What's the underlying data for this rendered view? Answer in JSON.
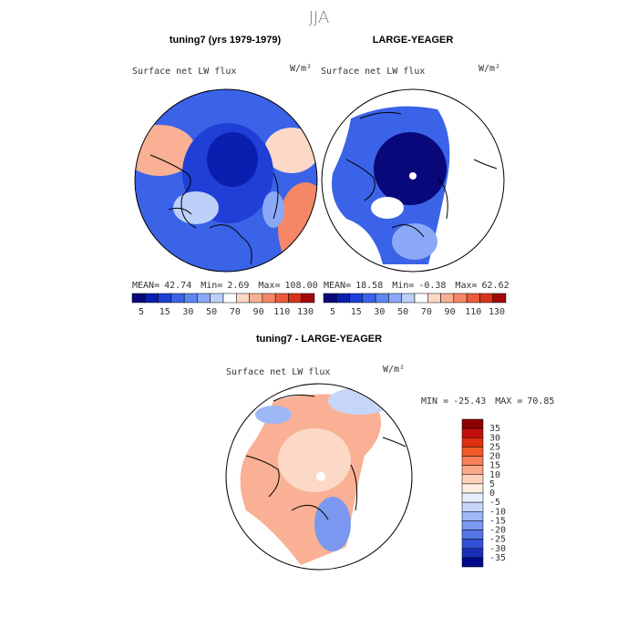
{
  "title": "JJA",
  "panels": [
    {
      "heading": "tuning7 (yrs 1979-1979)",
      "field": "Surface net LW flux",
      "units": "W/m²",
      "stats": [
        {
          "label": "MEAN=",
          "value": "42.74"
        },
        {
          "label": "Min=",
          "value": "2.69"
        },
        {
          "label": "Max=",
          "value": "108.00"
        }
      ]
    },
    {
      "heading": "LARGE-YEAGER",
      "field": "Surface net LW flux",
      "units": "W/m²",
      "stats": [
        {
          "label": "MEAN=",
          "value": "18.58"
        },
        {
          "label": "Min=",
          "value": "-0.38"
        },
        {
          "label": "Max=",
          "value": "62.62"
        }
      ]
    },
    {
      "heading": "tuning7 - LARGE-YEAGER",
      "field": "Surface net LW flux",
      "units": "W/m²",
      "stats": [
        {
          "label": "MIN =",
          "value": "-25.43"
        },
        {
          "label": "MAX =",
          "value": "70.85"
        }
      ]
    }
  ],
  "colorbar_top": {
    "labels": [
      "5",
      "15",
      "30",
      "50",
      "70",
      "90",
      "110",
      "130"
    ],
    "colors": [
      "#08087a",
      "#0a1fb0",
      "#1f3fd6",
      "#3a63e8",
      "#5f87f0",
      "#8aa8f5",
      "#bcd0fa",
      "#ffffff",
      "#fcd8c6",
      "#f9b094",
      "#f58766",
      "#ec5a3c",
      "#d83218",
      "#a00808"
    ]
  },
  "colorbar_diff": {
    "labels": [
      "35",
      "30",
      "25",
      "20",
      "15",
      "10",
      "5",
      "0",
      "-5",
      "-10",
      "-15",
      "-20",
      "-25",
      "-30",
      "-35"
    ],
    "colors": [
      "#8b0000",
      "#c01010",
      "#e03010",
      "#f05a28",
      "#f5805a",
      "#f9a888",
      "#fcd2be",
      "#fdeee4",
      "#e6eefc",
      "#c6d6fa",
      "#9eb8f5",
      "#7a98ef",
      "#5676e6",
      "#3350d8",
      "#1a2fb8",
      "#000a8c"
    ]
  }
}
